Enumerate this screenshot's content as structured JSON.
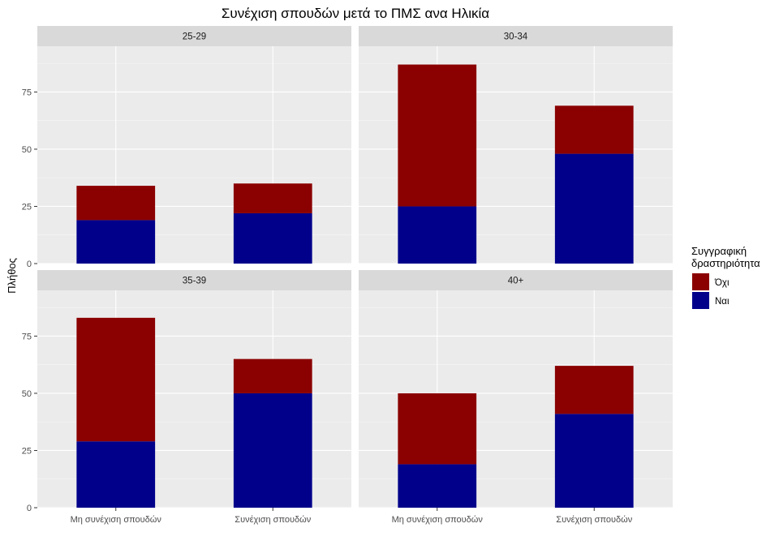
{
  "chart_data": {
    "type": "bar",
    "stacked": true,
    "title": "Συνέχιση σπουδών μετά το ΠΜΣ ανα Ηλικία",
    "ylabel": "Πλήθος",
    "xlabel": "",
    "categories": [
      "Μη συνέχιση σπουδών",
      "Συνέχιση σπουδών"
    ],
    "ylim": [
      0,
      95
    ],
    "yticks": [
      0,
      25,
      50,
      75
    ],
    "grid": true,
    "legend": {
      "title_lines": [
        "Συγγραφική",
        "δραστηριότητα"
      ],
      "position": "right"
    },
    "series": [
      {
        "name": "Όχι",
        "color": "#8B0000"
      },
      {
        "name": "Ναι",
        "color": "#00008B"
      }
    ],
    "panels": [
      {
        "label": "25-29",
        "values": {
          "Ναι": [
            19,
            22
          ],
          "Όχι": [
            15,
            13
          ]
        }
      },
      {
        "label": "30-34",
        "values": {
          "Ναι": [
            25,
            48
          ],
          "Όχι": [
            62,
            21
          ]
        }
      },
      {
        "label": "35-39",
        "values": {
          "Ναι": [
            29,
            50
          ],
          "Όχι": [
            54,
            15
          ]
        }
      },
      {
        "label": "40+",
        "values": {
          "Ναι": [
            19,
            41
          ],
          "Όχι": [
            31,
            21
          ]
        }
      }
    ]
  }
}
